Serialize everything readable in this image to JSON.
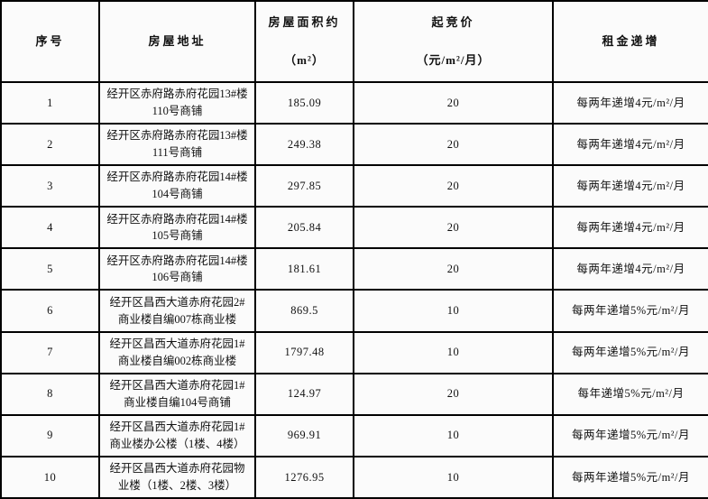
{
  "colors": {
    "border": "#000000",
    "cell_background": "#fbfbfb",
    "text": "#111111"
  },
  "table": {
    "headers": [
      {
        "label": "序号",
        "sub": ""
      },
      {
        "label": "房屋地址",
        "sub": ""
      },
      {
        "label": "房屋面积约",
        "sub": "（m²）"
      },
      {
        "label": "起竞价",
        "sub": "（元/m²/月）"
      },
      {
        "label": "租金递增",
        "sub": ""
      }
    ],
    "rows": [
      {
        "no": "1",
        "address": "经开区赤府路赤府花园13#楼110号商铺",
        "area": "185.09",
        "price": "20",
        "increment": "每两年递增4元/m²/月"
      },
      {
        "no": "2",
        "address": "经开区赤府路赤府花园13#楼111号商铺",
        "area": "249.38",
        "price": "20",
        "increment": "每两年递增4元/m²/月"
      },
      {
        "no": "3",
        "address": "经开区赤府路赤府花园14#楼104号商铺",
        "area": "297.85",
        "price": "20",
        "increment": "每两年递增4元/m²/月"
      },
      {
        "no": "4",
        "address": "经开区赤府路赤府花园14#楼105号商铺",
        "area": "205.84",
        "price": "20",
        "increment": "每两年递增4元/m²/月"
      },
      {
        "no": "5",
        "address": "经开区赤府路赤府花园14#楼106号商铺",
        "area": "181.61",
        "price": "20",
        "increment": "每两年递增4元/m²/月"
      },
      {
        "no": "6",
        "address": "经开区昌西大道赤府花园2#商业楼自编007栋商业楼",
        "area": "869.5",
        "price": "10",
        "increment": "每两年递增5%元/m²/月"
      },
      {
        "no": "7",
        "address": "经开区昌西大道赤府花园1#商业楼自编002栋商业楼",
        "area": "1797.48",
        "price": "10",
        "increment": "每两年递增5%元/m²/月"
      },
      {
        "no": "8",
        "address": "经开区昌西大道赤府花园1#商业楼自编104号商铺",
        "area": "124.97",
        "price": "20",
        "increment": "每年递增5%元/m²/月"
      },
      {
        "no": "9",
        "address": "经开区昌西大道赤府花园1#商业楼办公楼（1楼、4楼）",
        "area": "969.91",
        "price": "10",
        "increment": "每两年递增5%元/m²/月"
      },
      {
        "no": "10",
        "address": "经开区昌西大道赤府花园物业楼（1楼、2楼、3楼）",
        "area": "1276.95",
        "price": "10",
        "increment": "每两年递增5%元/m²/月"
      }
    ]
  }
}
